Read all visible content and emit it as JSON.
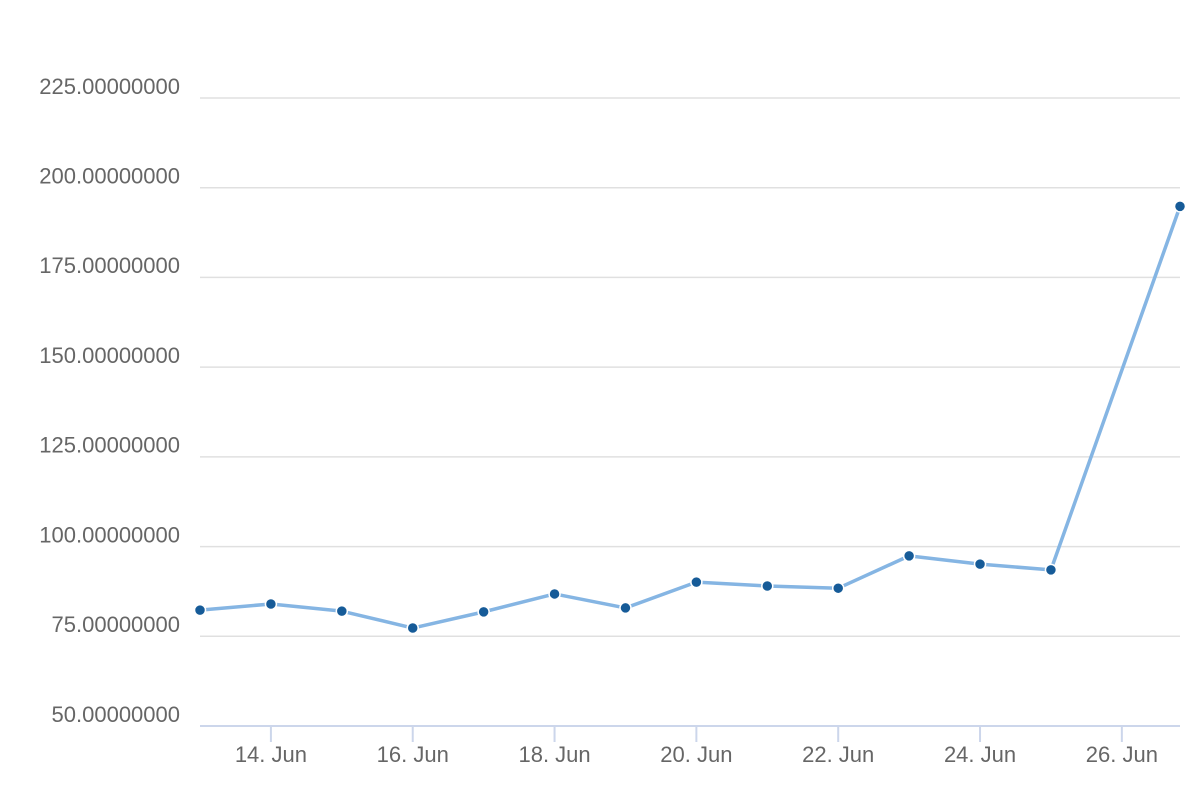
{
  "chart_data": {
    "type": "line",
    "x": [
      13,
      14,
      15,
      16,
      17,
      18,
      19,
      20,
      21,
      22,
      23,
      24,
      25,
      26.82
    ],
    "series": [
      {
        "color": "#85b5e3",
        "marker_color": "#165b98",
        "values": [
          82.3,
          84.0,
          82.0,
          77.3,
          81.8,
          86.8,
          82.9,
          90.1,
          89.0,
          88.4,
          97.4,
          95.1,
          93.5,
          194.8
        ]
      }
    ],
    "xlim": [
      13,
      26.82
    ],
    "xticks": [
      {
        "value": 14,
        "label": "14. Jun"
      },
      {
        "value": 16,
        "label": "16. Jun"
      },
      {
        "value": 18,
        "label": "18. Jun"
      },
      {
        "value": 20,
        "label": "20. Jun"
      },
      {
        "value": 22,
        "label": "22. Jun"
      },
      {
        "value": 24,
        "label": "24. Jun"
      },
      {
        "value": 26,
        "label": "26. Jun"
      }
    ],
    "ylim": [
      50,
      225
    ],
    "yticks": [
      {
        "value": 50,
        "label": "50.00000000"
      },
      {
        "value": 75,
        "label": "75.00000000"
      },
      {
        "value": 100,
        "label": "100.00000000"
      },
      {
        "value": 125,
        "label": "125.00000000"
      },
      {
        "value": 150,
        "label": "150.00000000"
      },
      {
        "value": 175,
        "label": "175.00000000"
      },
      {
        "value": 200,
        "label": "200.00000000"
      },
      {
        "value": 225,
        "label": "225.00000000"
      }
    ],
    "grid": true
  }
}
